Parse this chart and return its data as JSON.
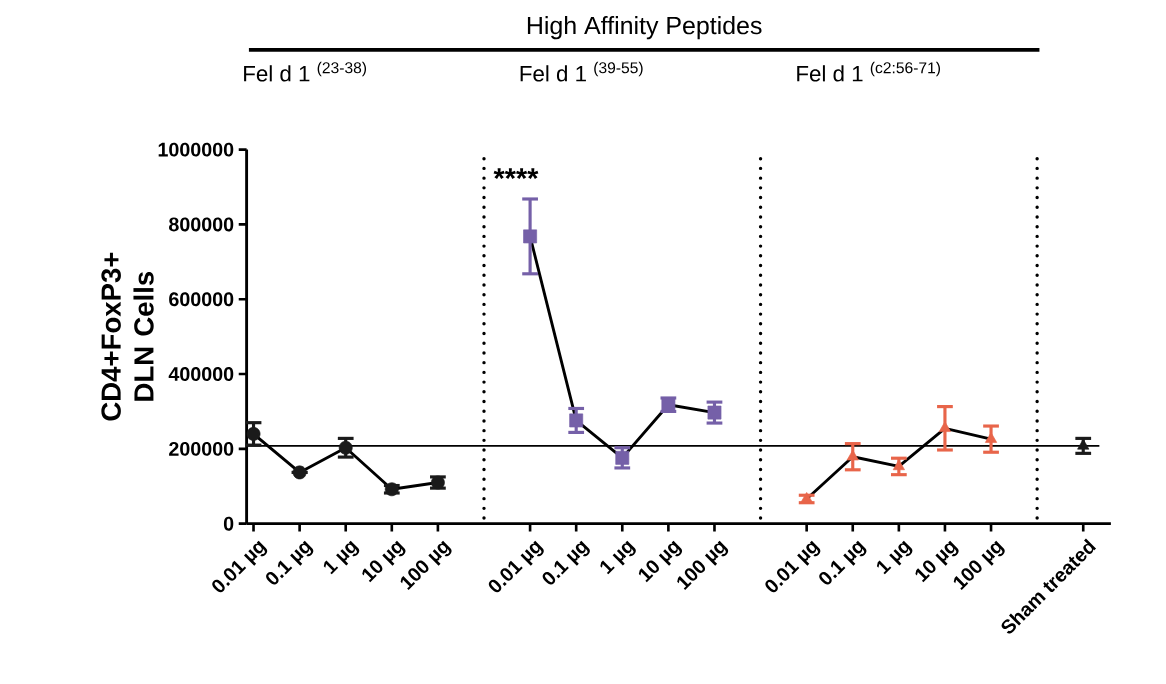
{
  "chart_data": {
    "type": "line",
    "title": "High Affinity Peptides",
    "ylabel": "CD4+FoxP3+ DLN Cells",
    "categories": [
      "0.01 µg",
      "0.1 µg",
      "1 µg",
      "10 µg",
      "100 µg",
      null,
      "0.01 µg",
      "0.1 µg",
      "1 µg",
      "10 µg",
      "100 µg",
      null,
      "0.01 µg",
      "0.1 µg",
      "1 µg",
      "10 µg",
      "100 µg",
      null,
      "Sham treated"
    ],
    "series": [
      {
        "color": "#1a1a1a",
        "marker": "circle",
        "values": [
          240000,
          137000,
          203000,
          92000,
          110000,
          null,
          null,
          null,
          null,
          null,
          null,
          null,
          null,
          null,
          null,
          null,
          null,
          null,
          null
        ],
        "errors": [
          30000,
          null,
          25000,
          10000,
          15000,
          null,
          null,
          null,
          null,
          null,
          null,
          null,
          null,
          null,
          null,
          null,
          null,
          null,
          null
        ]
      },
      {
        "color": "#7560a8",
        "marker": "square",
        "values": [
          null,
          null,
          null,
          null,
          null,
          null,
          768000,
          276000,
          176000,
          318000,
          297000,
          null,
          null,
          null,
          null,
          null,
          null,
          null,
          null
        ],
        "errors": [
          null,
          null,
          null,
          null,
          null,
          null,
          100000,
          32000,
          27000,
          18000,
          28000,
          null,
          null,
          null,
          null,
          null,
          null,
          null,
          null
        ]
      },
      {
        "color": "#e8654a",
        "marker": "triangle",
        "values": [
          null,
          null,
          null,
          null,
          null,
          null,
          null,
          null,
          null,
          null,
          null,
          null,
          66000,
          179000,
          153000,
          255000,
          226000,
          null,
          null
        ],
        "errors": [
          null,
          null,
          null,
          null,
          null,
          null,
          null,
          null,
          null,
          null,
          null,
          null,
          10000,
          35000,
          22000,
          58000,
          35000,
          null,
          null
        ]
      },
      {
        "type": "scatter",
        "color": "#1a1a1a",
        "marker": "triangle",
        "values": [
          null,
          null,
          null,
          null,
          null,
          null,
          null,
          null,
          null,
          null,
          null,
          null,
          null,
          null,
          null,
          null,
          null,
          null,
          208000
        ],
        "errors": [
          null,
          null,
          null,
          null,
          null,
          null,
          null,
          null,
          null,
          null,
          null,
          null,
          null,
          null,
          null,
          null,
          null,
          null,
          20000
        ]
      }
    ],
    "ylim": [
      0,
      1000000
    ],
    "yticks": [
      0,
      200000,
      400000,
      600000,
      800000,
      1000000
    ],
    "ref_lines": [
      {
        "axis": "y",
        "value": 208000,
        "line_style": "solid",
        "color": "#000000"
      }
    ],
    "grid": "x",
    "annotations": [
      "****",
      "Fel d 1 $^{(23-38)}$",
      "Fel d 1 $^{(39-55)}$",
      "Fel d 1 $^{(c2:56-71)}$"
    ]
  }
}
